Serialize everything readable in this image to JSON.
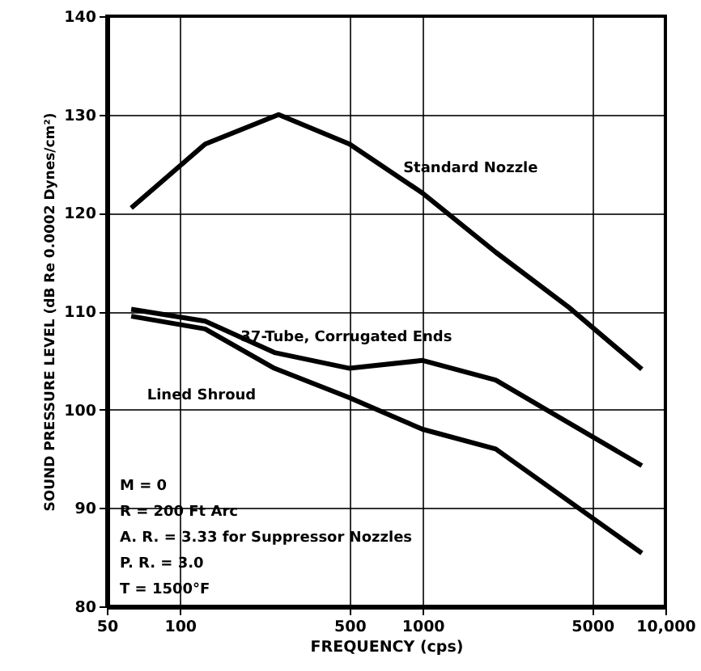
{
  "chart_data": {
    "type": "line",
    "xlabel": "FREQUENCY (cps)",
    "ylabel": "SOUND PRESSURE LEVEL (dB Re 0.0002 Dynes/cm²)",
    "log": "x",
    "xlim": [
      50,
      10000
    ],
    "xticks": [
      50,
      100,
      500,
      1000,
      5000,
      {
        "value": 10000,
        "label": "10,000"
      }
    ],
    "ylim": [
      80,
      140
    ],
    "yticks": [
      80,
      90,
      100,
      110,
      120,
      130,
      140
    ],
    "grid": true,
    "marker": "none",
    "line_style": "solid",
    "series": [
      {
        "name": "Standard Nozzle",
        "color": "#000000",
        "x": [
          63,
          127,
          255,
          500,
          1000,
          2000,
          4000,
          8000
        ],
        "values": [
          120.5,
          127,
          130,
          127,
          122,
          116,
          110.4,
          104.1
        ]
      },
      {
        "name": "37-Tube, Corrugated Ends",
        "color": "#000000",
        "x": [
          63,
          127,
          245,
          500,
          1000,
          2000,
          8000
        ],
        "values": [
          110.2,
          109,
          105.8,
          104.2,
          105,
          103,
          94.3
        ]
      },
      {
        "name": "Lined Shroud",
        "color": "#000000",
        "x": [
          63,
          127,
          245,
          500,
          1000,
          2000,
          8000
        ],
        "values": [
          109.5,
          108.2,
          104.2,
          101.2,
          98,
          96,
          85.4
        ]
      }
    ],
    "annotations": [
      "M = 0",
      "R = 200 Ft Arc",
      "A. R. = 3.33 for Suppressor Nozzles",
      "P. R. = 3.0",
      "T = 1500°F"
    ]
  }
}
